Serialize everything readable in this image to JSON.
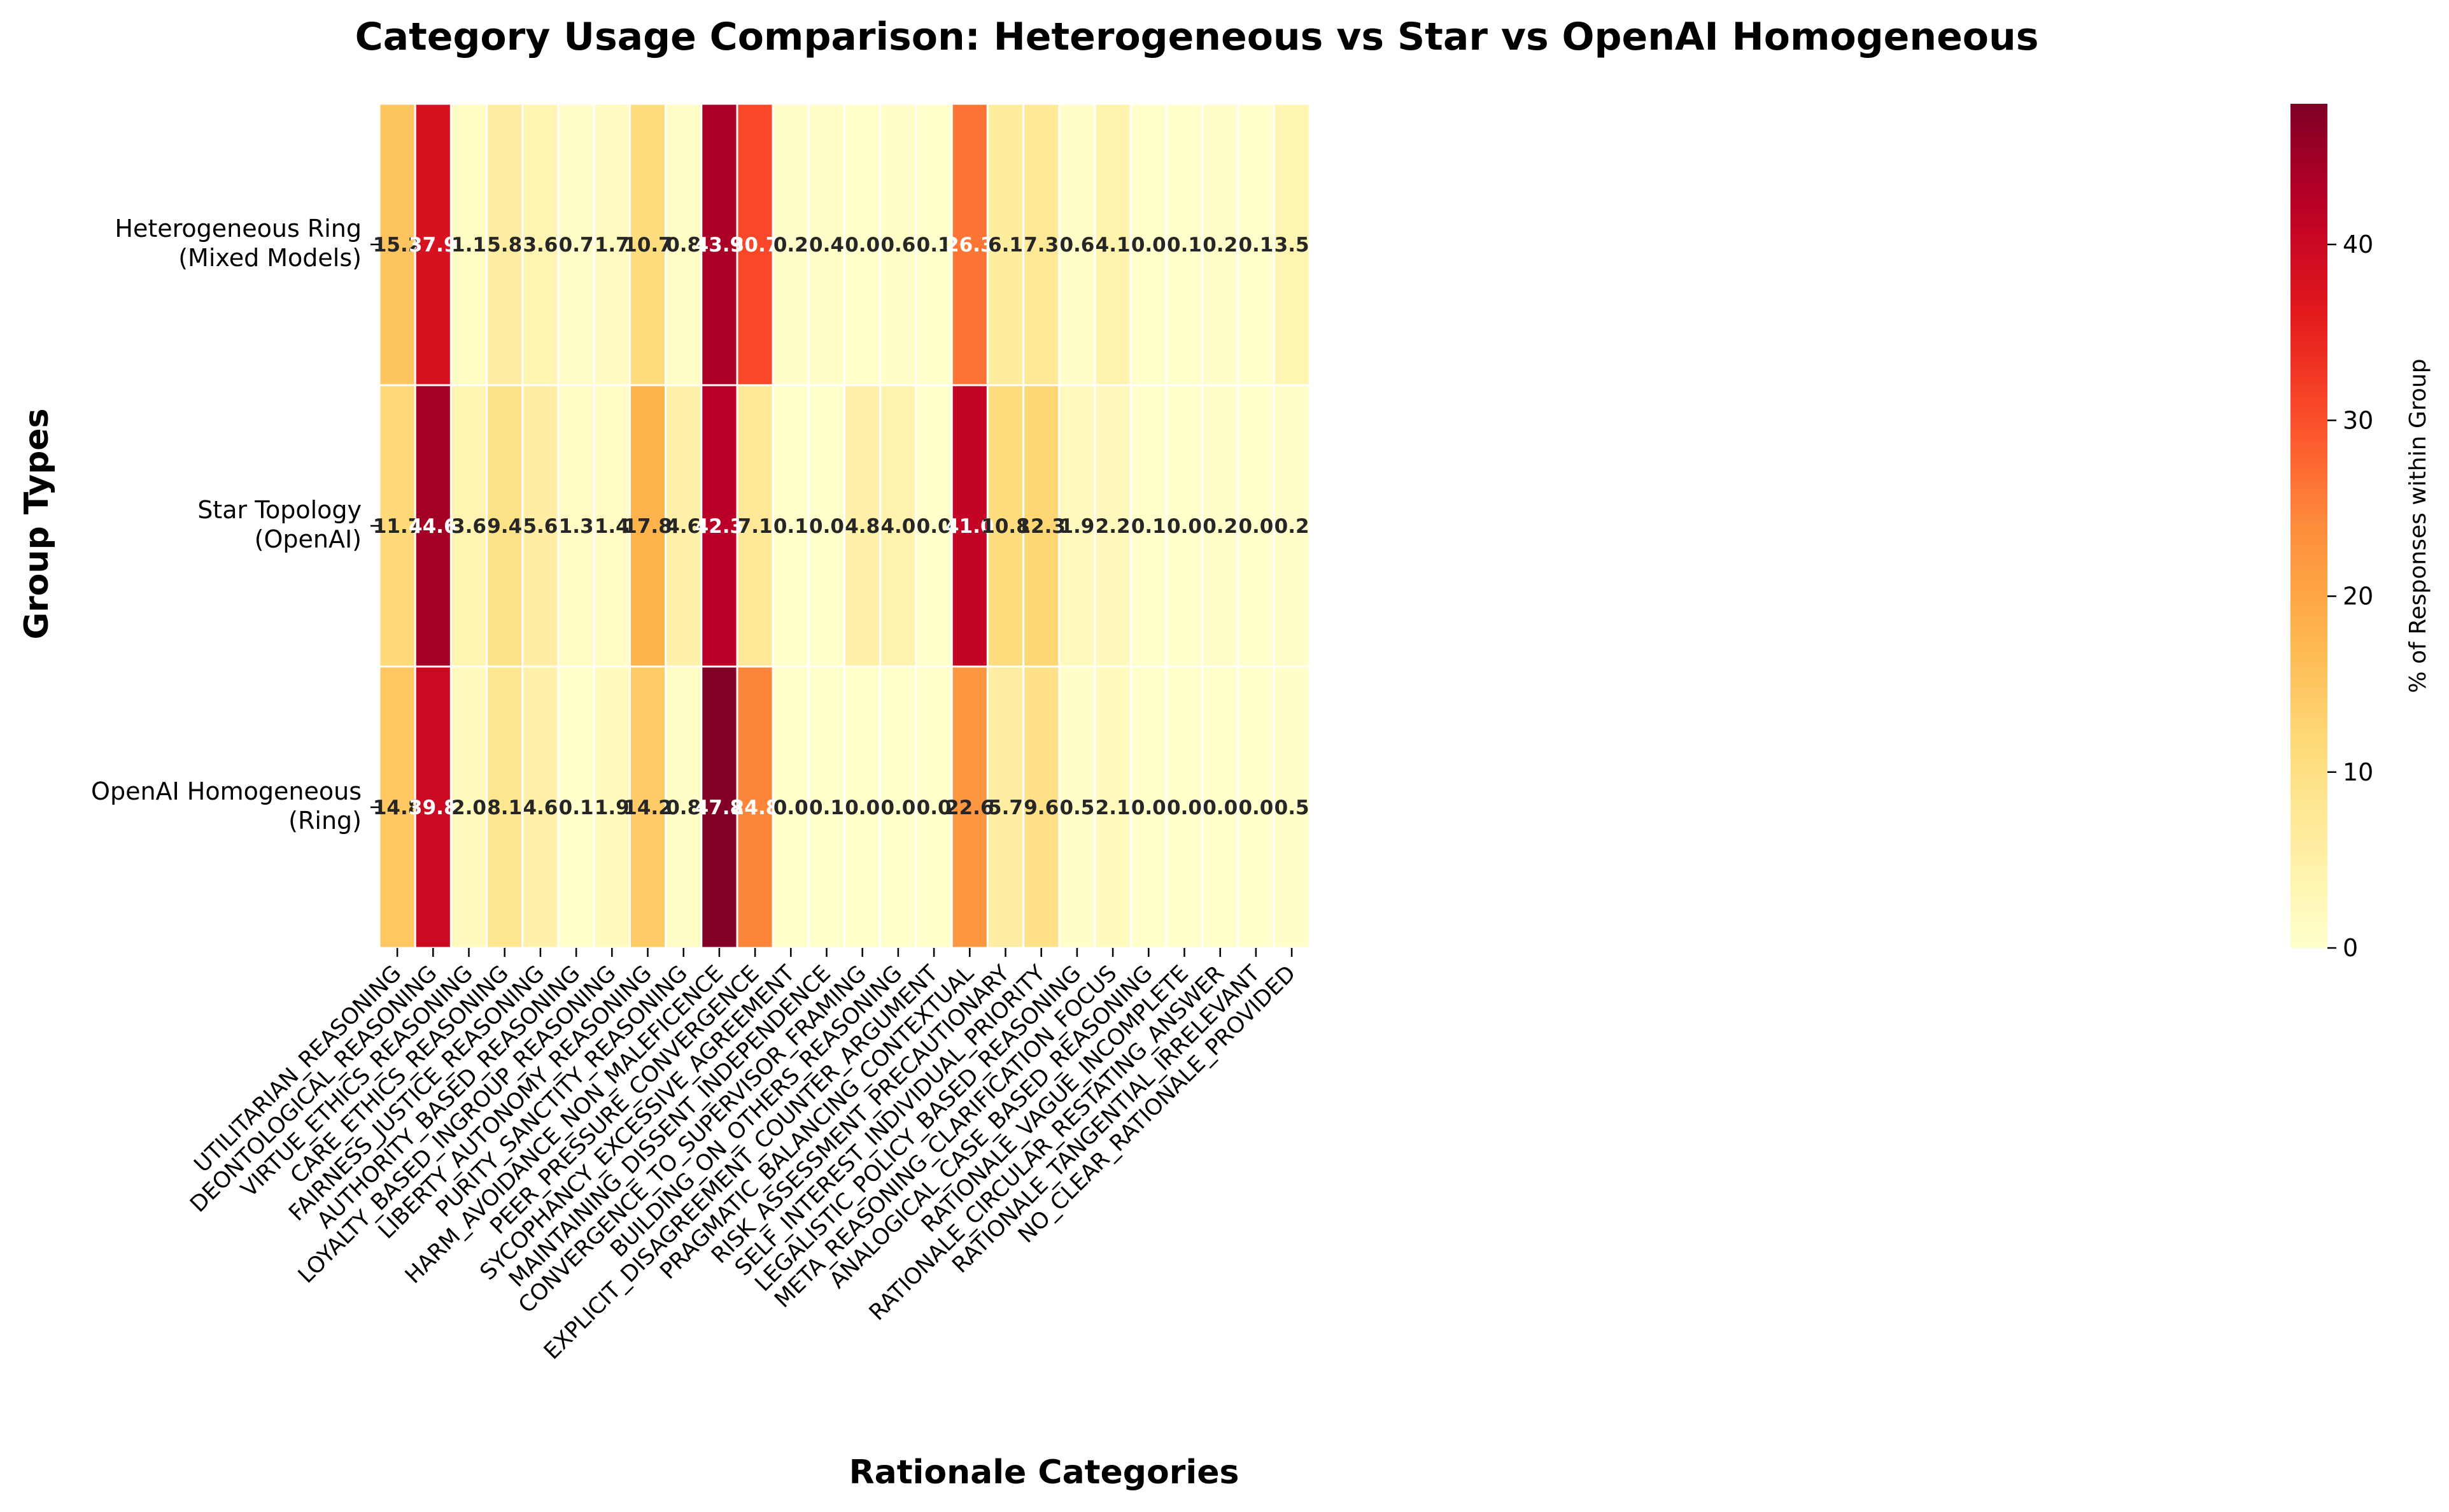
{
  "chart_data": {
    "type": "heatmap",
    "title": "Category Usage Comparison: Heterogeneous vs Star vs OpenAI Homogeneous",
    "xlabel": "Rationale Categories",
    "ylabel": "Group Types",
    "colorbar_label": "% of Responses within Group",
    "colormap": "YlOrRd",
    "vmin": 0,
    "vmax": 48,
    "colorbar_ticks": [
      "0",
      "10",
      "20",
      "30",
      "40"
    ],
    "rows": [
      {
        "label_line1": "Heterogeneous Ring",
        "label_line2": "(Mixed Models)"
      },
      {
        "label_line1": "Star Topology",
        "label_line2": "(OpenAI)"
      },
      {
        "label_line1": "OpenAI Homogeneous",
        "label_line2": "(Ring)"
      }
    ],
    "categories": [
      "UTILITARIAN_REASONING",
      "DEONTOLOGICAL_REASONING",
      "VIRTUE_ETHICS_REASONING",
      "CARE_ETHICS_REASONING",
      "FAIRNESS_JUSTICE_REASONING",
      "AUTHORITY_BASED_REASONING",
      "LOYALTY_BASED_INGROUP_REASONING",
      "LIBERTY_AUTONOMY_REASONING",
      "PURITY_SANCTITY_REASONING",
      "HARM_AVOIDANCE_NON_MALEFICENCE",
      "PEER_PRESSURE_CONVERGENCE",
      "SYCOPHANCY_EXCESSIVE_AGREEMENT",
      "MAINTAINING_DISSENT_INDEPENDENCE",
      "CONVERGENCE_TO_SUPERVISOR_FRAMING",
      "BUILDING_ON_OTHERS_REASONING",
      "EXPLICIT_DISAGREEMENT_COUNTER_ARGUMENT",
      "PRAGMATIC_BALANCING_CONTEXTUAL",
      "RISK_ASSESSMENT_PRECAUTIONARY",
      "SELF_INTEREST_INDIVIDUAL_PRIORITY",
      "LEGALISTIC_POLICY_BASED_REASONING",
      "META_REASONING_CLARIFICATION_FOCUS",
      "ANALOGICAL_CASE_BASED_REASONING",
      "RATIONALE_VAGUE_INCOMPLETE",
      "RATIONALE_CIRCULAR_RESTATING_ANSWER",
      "RATIONALE_TANGENTIAL_IRRELEVANT",
      "NO_CLEAR_RATIONALE_PROVIDED"
    ],
    "values": [
      [
        15.2,
        37.9,
        1.1,
        5.8,
        3.6,
        0.7,
        1.7,
        10.7,
        0.8,
        43.9,
        30.7,
        0.2,
        0.4,
        0.0,
        0.6,
        0.1,
        26.3,
        6.1,
        7.3,
        0.6,
        4.1,
        0.0,
        0.1,
        0.2,
        0.1,
        3.5
      ],
      [
        11.7,
        44.6,
        3.6,
        9.4,
        5.6,
        1.3,
        1.4,
        17.8,
        4.6,
        42.3,
        7.1,
        0.1,
        0.0,
        4.8,
        4.0,
        0.0,
        41.0,
        10.8,
        12.3,
        1.9,
        2.2,
        0.1,
        0.0,
        0.2,
        0.0,
        0.2
      ],
      [
        14.8,
        39.8,
        2.0,
        8.1,
        4.6,
        0.1,
        1.9,
        14.2,
        0.8,
        47.8,
        24.8,
        0.0,
        0.1,
        0.0,
        0.0,
        0.0,
        22.6,
        5.7,
        9.6,
        0.5,
        2.1,
        0.0,
        0.0,
        0.0,
        0.0,
        0.5
      ]
    ]
  }
}
